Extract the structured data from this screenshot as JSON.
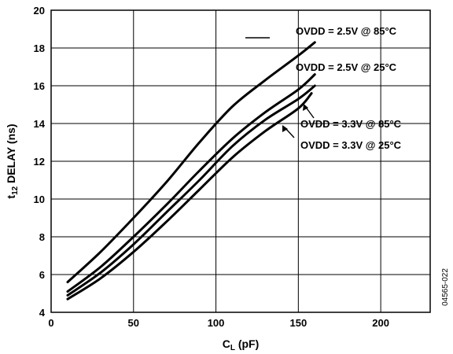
{
  "chart_data": {
    "type": "line",
    "xlabel": "C",
    "xlabel_sub": "L",
    "xlabel_unit": " (pF)",
    "ylabel": "t",
    "ylabel_sub": "12",
    "ylabel_unit": " DELAY (ns)",
    "xlim": [
      0,
      230
    ],
    "ylim": [
      4,
      20
    ],
    "xticks": [
      0,
      50,
      100,
      150,
      200
    ],
    "yticks": [
      4,
      6,
      8,
      10,
      12,
      14,
      16,
      18,
      20
    ],
    "grid": true,
    "series": [
      {
        "name": "OVDD = 2.5V @ 85°C",
        "x": [
          10,
          30,
          50,
          70,
          90,
          110,
          130,
          150,
          160
        ],
        "y": [
          5.6,
          7.2,
          9.0,
          10.9,
          13.0,
          14.9,
          16.3,
          17.6,
          18.3
        ]
      },
      {
        "name": "OVDD = 2.5V @ 25°C",
        "x": [
          10,
          30,
          50,
          70,
          90,
          110,
          130,
          150,
          160
        ],
        "y": [
          5.1,
          6.4,
          8.0,
          9.7,
          11.5,
          13.2,
          14.6,
          15.8,
          16.6
        ]
      },
      {
        "name": "OVDD = 3.3V @ 85°C",
        "x": [
          10,
          30,
          50,
          70,
          90,
          110,
          130,
          150,
          160
        ],
        "y": [
          4.9,
          6.1,
          7.6,
          9.3,
          11.0,
          12.8,
          14.2,
          15.3,
          16.0
        ]
      },
      {
        "name": "OVDD = 3.3V @ 25°C",
        "x": [
          10,
          30,
          50,
          70,
          90,
          110,
          130,
          150,
          158
        ],
        "y": [
          4.7,
          5.8,
          7.2,
          8.8,
          10.5,
          12.2,
          13.6,
          14.8,
          15.6
        ]
      }
    ]
  },
  "figure_id": "04565-022"
}
